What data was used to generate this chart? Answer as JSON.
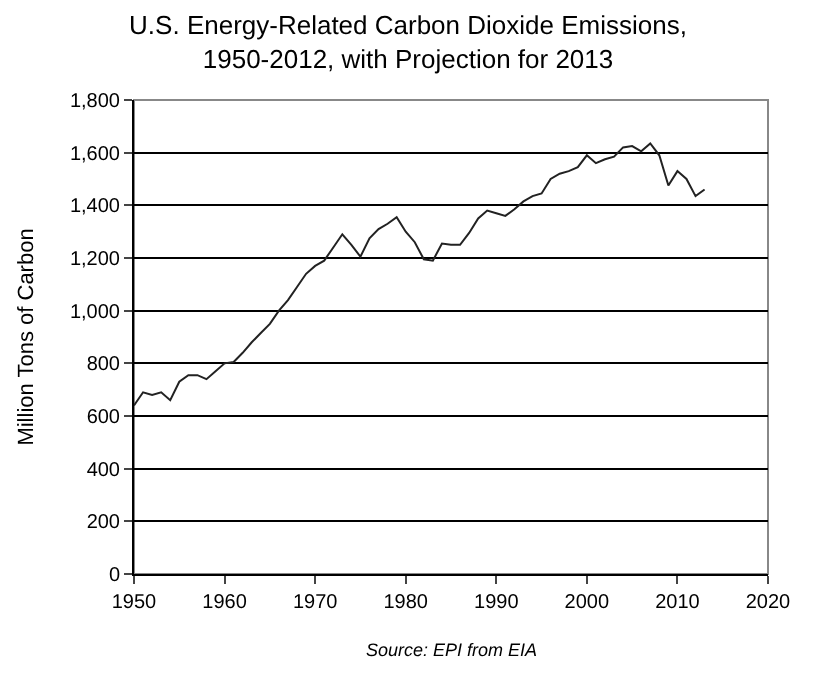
{
  "chart_data": {
    "type": "line",
    "title": "U.S. Energy-Related Carbon Dioxide Emissions,\n1950-2012, with Projection for 2013",
    "ylabel": "Million Tons of Carbon",
    "x": [
      1950,
      1951,
      1952,
      1953,
      1954,
      1955,
      1956,
      1957,
      1958,
      1959,
      1960,
      1961,
      1962,
      1963,
      1964,
      1965,
      1966,
      1967,
      1968,
      1969,
      1970,
      1971,
      1972,
      1973,
      1974,
      1975,
      1976,
      1977,
      1978,
      1979,
      1980,
      1981,
      1982,
      1983,
      1984,
      1985,
      1986,
      1987,
      1988,
      1989,
      1990,
      1991,
      1992,
      1993,
      1994,
      1995,
      1996,
      1997,
      1998,
      1999,
      2000,
      2001,
      2002,
      2003,
      2004,
      2005,
      2006,
      2007,
      2008,
      2009,
      2010,
      2011,
      2012,
      2013
    ],
    "series": [
      {
        "color": "#222222",
        "values": [
          640,
          690,
          680,
          690,
          660,
          730,
          755,
          755,
          740,
          770,
          800,
          805,
          840,
          880,
          915,
          950,
          1000,
          1040,
          1090,
          1140,
          1170,
          1190,
          1240,
          1290,
          1250,
          1205,
          1275,
          1310,
          1330,
          1355,
          1300,
          1260,
          1195,
          1190,
          1255,
          1250,
          1250,
          1295,
          1350,
          1380,
          1370,
          1360,
          1385,
          1415,
          1435,
          1445,
          1500,
          1520,
          1530,
          1545,
          1590,
          1560,
          1575,
          1585,
          1620,
          1625,
          1605,
          1635,
          1590,
          1475,
          1530,
          1500,
          1435,
          1460
        ]
      }
    ],
    "xlim": [
      1950,
      2020
    ],
    "xticks": [
      1950,
      1960,
      1970,
      1980,
      1990,
      2000,
      2010,
      2020
    ],
    "ylim": [
      0,
      1800
    ],
    "yticks": [
      {
        "value": 0,
        "label": "0"
      },
      {
        "value": 200,
        "label": "200"
      },
      {
        "value": 400,
        "label": "400"
      },
      {
        "value": 600,
        "label": "600"
      },
      {
        "value": 800,
        "label": "800"
      },
      {
        "value": 1000,
        "label": "1,000"
      },
      {
        "value": 1200,
        "label": "1,200"
      },
      {
        "value": 1400,
        "label": "1,400"
      },
      {
        "value": 1600,
        "label": "1,600"
      },
      {
        "value": 1800,
        "label": "1,800"
      }
    ],
    "grid": "y",
    "marker": "none",
    "line_style": "solid",
    "annotations": [
      "Source: EPI from EIA"
    ]
  }
}
